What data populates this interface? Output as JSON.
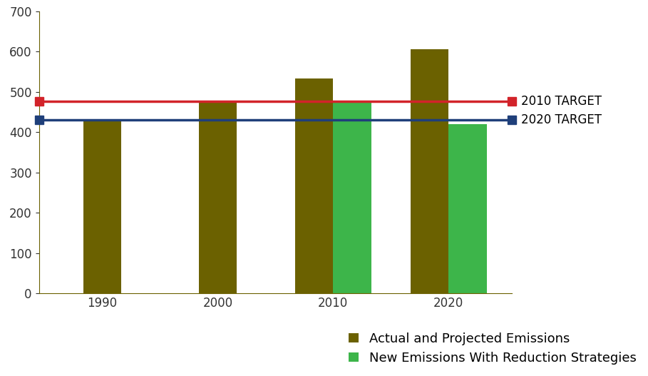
{
  "chart_data": {
    "type": "bar",
    "categories": [
      "1990",
      "2000",
      "2010",
      "2020"
    ],
    "series": [
      {
        "name": "Actual and Projected Emissions",
        "color": "#6b6100",
        "values": [
          427,
          476,
          533,
          606
        ]
      },
      {
        "name": "New Emissions With Reduction Strategies",
        "color": "#3db54a",
        "values": [
          null,
          null,
          476,
          420
        ]
      }
    ],
    "reference_lines": [
      {
        "name": "2010 TARGET",
        "value": 477,
        "color": "#d2232a"
      },
      {
        "name": "2020 TARGET",
        "value": 430,
        "color": "#1f3f7a"
      }
    ],
    "ylim": [
      0,
      700
    ],
    "yticks": [
      0,
      100,
      200,
      300,
      400,
      500,
      600,
      700
    ],
    "grid": false,
    "legend": "lower right"
  }
}
